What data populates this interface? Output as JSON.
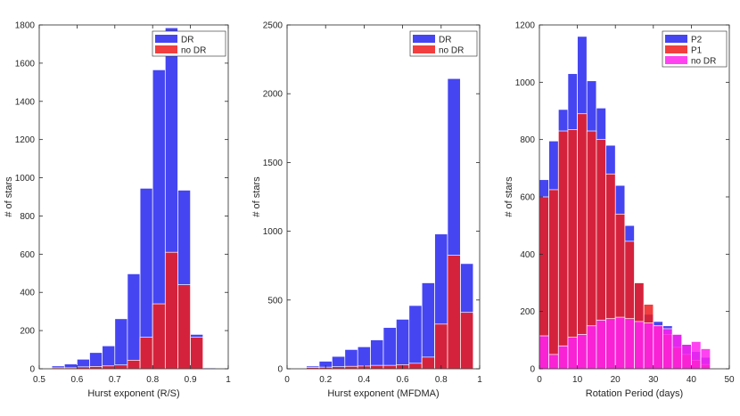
{
  "chart_data": [
    {
      "type": "bar",
      "xlabel": "Hurst exponent (R/S)",
      "ylabel": "# of stars",
      "xlim": [
        0.5,
        1
      ],
      "ylim": [
        0,
        1800
      ],
      "xticks": [
        "0.5",
        "0.6",
        "0.7",
        "0.8",
        "0.9",
        "1"
      ],
      "yticks": [
        "0",
        "200",
        "400",
        "600",
        "800",
        "1000",
        "1200",
        "1400",
        "1600",
        "1800"
      ],
      "legend_position": "top-right",
      "series": [
        {
          "name": "DR",
          "color": "#2525f0",
          "bins": [
            [
              0.5,
              0.5333,
              5
            ],
            [
              0.5333,
              0.5667,
              15
            ],
            [
              0.5667,
              0.6,
              25
            ],
            [
              0.6,
              0.6333,
              50
            ],
            [
              0.6333,
              0.6667,
              85
            ],
            [
              0.6667,
              0.7,
              120
            ],
            [
              0.7,
              0.7333,
              262
            ],
            [
              0.7333,
              0.7667,
              497
            ],
            [
              0.7667,
              0.8,
              945
            ],
            [
              0.8,
              0.8333,
              1565
            ],
            [
              0.8333,
              0.8667,
              1785
            ],
            [
              0.8667,
              0.9,
              935
            ],
            [
              0.9,
              0.9333,
              180
            ],
            [
              0.9333,
              0.9667,
              5
            ],
            [
              0.9667,
              1,
              2
            ]
          ]
        },
        {
          "name": "no DR",
          "color": "#ee1c1c",
          "bins": [
            [
              0.5,
              0.5333,
              3
            ],
            [
              0.5333,
              0.5667,
              5
            ],
            [
              0.5667,
              0.6,
              5
            ],
            [
              0.6,
              0.6333,
              10
            ],
            [
              0.6333,
              0.6667,
              12
            ],
            [
              0.6667,
              0.7,
              15
            ],
            [
              0.7,
              0.7333,
              20
            ],
            [
              0.7333,
              0.7667,
              45
            ],
            [
              0.7667,
              0.8,
              165
            ],
            [
              0.8,
              0.8333,
              340
            ],
            [
              0.8333,
              0.8667,
              610
            ],
            [
              0.8667,
              0.9,
              440
            ],
            [
              0.9,
              0.9333,
              165
            ],
            [
              0.9333,
              0.9667,
              2
            ],
            [
              0.9667,
              1,
              0
            ]
          ]
        }
      ]
    },
    {
      "type": "bar",
      "xlabel": "Hurst exponent (MFDMA)",
      "ylabel": "# of stars",
      "xlim": [
        0,
        1
      ],
      "ylim": [
        0,
        2500
      ],
      "xticks": [
        "0",
        "0.2",
        "0.4",
        "0.6",
        "0.8",
        "1"
      ],
      "yticks": [
        "0",
        "500",
        "1000",
        "1500",
        "2000",
        "2500"
      ],
      "legend_position": "top-right",
      "series": [
        {
          "name": "DR",
          "color": "#2525f0",
          "bins": [
            [
              0.1,
              0.1667,
              20
            ],
            [
              0.1667,
              0.2333,
              55
            ],
            [
              0.2333,
              0.3,
              90
            ],
            [
              0.3,
              0.3667,
              140
            ],
            [
              0.3667,
              0.4333,
              160
            ],
            [
              0.4333,
              0.5,
              210
            ],
            [
              0.5,
              0.5667,
              300
            ],
            [
              0.5667,
              0.6333,
              360
            ],
            [
              0.6333,
              0.7,
              460
            ],
            [
              0.7,
              0.7667,
              625
            ],
            [
              0.7667,
              0.8333,
              980
            ],
            [
              0.8333,
              0.9,
              2110
            ],
            [
              0.9,
              0.9667,
              765
            ]
          ]
        },
        {
          "name": "no DR",
          "color": "#ee1c1c",
          "bins": [
            [
              0.1,
              0.1667,
              10
            ],
            [
              0.1667,
              0.2333,
              12
            ],
            [
              0.2333,
              0.3,
              15
            ],
            [
              0.3,
              0.3667,
              18
            ],
            [
              0.3667,
              0.4333,
              20
            ],
            [
              0.4333,
              0.5,
              25
            ],
            [
              0.5,
              0.5667,
              25
            ],
            [
              0.5667,
              0.6333,
              30
            ],
            [
              0.6333,
              0.7,
              40
            ],
            [
              0.7,
              0.7667,
              85
            ],
            [
              0.7667,
              0.8333,
              325
            ],
            [
              0.8333,
              0.9,
              825
            ],
            [
              0.9,
              0.9667,
              410
            ]
          ]
        }
      ]
    },
    {
      "type": "bar",
      "xlabel": "Rotation Period (days)",
      "ylabel": "# of stars",
      "xlim": [
        0,
        50
      ],
      "ylim": [
        0,
        1200
      ],
      "xticks": [
        "0",
        "10",
        "20",
        "30",
        "40",
        "50"
      ],
      "yticks": [
        "0",
        "200",
        "400",
        "600",
        "800",
        "1000",
        "1200"
      ],
      "legend_position": "top-right",
      "series": [
        {
          "name": "P2",
          "color": "#2525f0",
          "bins": [
            [
              0,
              2.5,
              660
            ],
            [
              2.5,
              5,
              795
            ],
            [
              5,
              7.5,
              905
            ],
            [
              7.5,
              10,
              1030
            ],
            [
              10,
              12.5,
              1160
            ],
            [
              12.5,
              15,
              1005
            ],
            [
              15,
              17.5,
              910
            ],
            [
              17.5,
              20,
              780
            ],
            [
              20,
              22.5,
              640
            ],
            [
              22.5,
              25,
              500
            ],
            [
              25,
              27.5,
              300
            ],
            [
              27.5,
              30,
              190
            ],
            [
              30,
              32.5,
              165
            ],
            [
              32.5,
              35,
              150
            ],
            [
              35,
              37.5,
              120
            ],
            [
              37.5,
              40,
              85
            ],
            [
              40,
              42.5,
              60
            ],
            [
              42.5,
              45,
              40
            ]
          ]
        },
        {
          "name": "P1",
          "color": "#ee1c1c",
          "bins": [
            [
              0,
              2.5,
              600
            ],
            [
              2.5,
              5,
              625
            ],
            [
              5,
              7.5,
              830
            ],
            [
              7.5,
              10,
              835
            ],
            [
              10,
              12.5,
              890
            ],
            [
              12.5,
              15,
              830
            ],
            [
              15,
              17.5,
              800
            ],
            [
              17.5,
              20,
              680
            ],
            [
              20,
              22.5,
              540
            ],
            [
              22.5,
              25,
              445
            ],
            [
              25,
              27.5,
              300
            ],
            [
              27.5,
              30,
              225
            ],
            [
              30,
              32.5,
              150
            ],
            [
              32.5,
              35,
              120
            ],
            [
              35,
              37.5,
              75
            ],
            [
              37.5,
              40,
              50
            ],
            [
              40,
              42.5,
              30
            ],
            [
              42.5,
              45,
              15
            ]
          ]
        },
        {
          "name": "no DR",
          "color": "#ff22ee",
          "bins": [
            [
              0,
              2.5,
              115
            ],
            [
              2.5,
              5,
              50
            ],
            [
              5,
              7.5,
              80
            ],
            [
              7.5,
              10,
              110
            ],
            [
              10,
              12.5,
              120
            ],
            [
              12.5,
              15,
              150
            ],
            [
              15,
              17.5,
              170
            ],
            [
              17.5,
              20,
              175
            ],
            [
              20,
              22.5,
              180
            ],
            [
              22.5,
              25,
              175
            ],
            [
              25,
              27.5,
              165
            ],
            [
              27.5,
              30,
              160
            ],
            [
              30,
              32.5,
              150
            ],
            [
              32.5,
              35,
              140
            ],
            [
              35,
              37.5,
              120
            ],
            [
              37.5,
              40,
              85
            ],
            [
              40,
              42.5,
              95
            ],
            [
              42.5,
              45,
              70
            ]
          ]
        }
      ]
    }
  ]
}
